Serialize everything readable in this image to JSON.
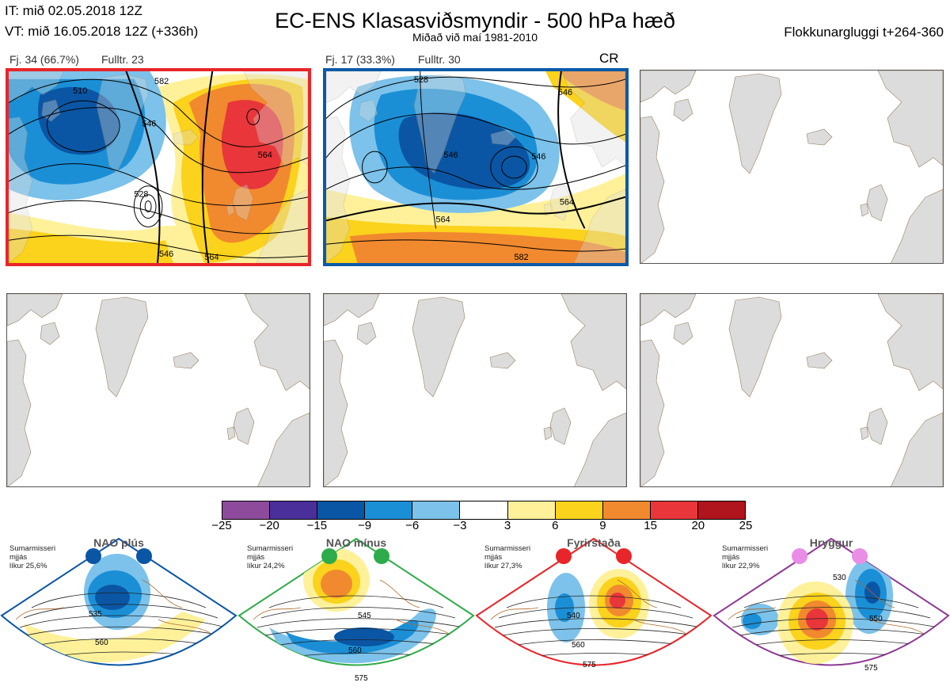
{
  "header": {
    "it_line": "IT: mið 02.05.2018 12Z",
    "vt_line": "VT: mið 16.05.2018 12Z  (+336h)",
    "title": "EC-ENS Klasasviðsmyndir - 500 hPa hæð",
    "subtitle": "Miðað við maí 1981-2010",
    "window": "Flokkunargluggi t+264-360"
  },
  "clusters": [
    {
      "count_label": "Fj. 34 (66.7%)",
      "rep_label": "Fulltr. 23",
      "frame_color": "#e8252a",
      "contour_labels": [
        "510",
        "528",
        "546",
        "546",
        "564",
        "564",
        "582"
      ]
    },
    {
      "count_label": "Fj. 17 (33.3%)",
      "rep_label": "Fulltr. 30",
      "frame_color": "#0a5aa8",
      "tag": "CR",
      "contour_labels": [
        "528",
        "546",
        "546",
        "546",
        "564",
        "564",
        "582"
      ]
    }
  ],
  "colorbar": {
    "ticks": [
      "−25",
      "−20",
      "−15",
      "−9",
      "−6",
      "−3",
      "3",
      "6",
      "9",
      "15",
      "20",
      "25"
    ],
    "colors": [
      "#8e4b9b",
      "#4a2f9a",
      "#0a56a4",
      "#1b8fd6",
      "#7cc2ea",
      "#ffffff",
      "#fff19a",
      "#fbd21c",
      "#f1892f",
      "#e8363a",
      "#b0141c"
    ]
  },
  "regimes": [
    {
      "name": "NAO plús",
      "note": "Sumarmisseri\nmjjás\nlíkur 25,6%",
      "color": "#0a56a4",
      "contours": [
        "535",
        "560"
      ]
    },
    {
      "name": "NAO mínus",
      "note": "Sumarmisseri\nmjjás\nlíkur 24,2%",
      "color": "#2eab4a",
      "contours": [
        "545",
        "560",
        "575"
      ]
    },
    {
      "name": "Fyrirstaða",
      "note": "Sumarmisseri\nmjjás\nlíkur 27,3%",
      "color": "#e8252a",
      "contours": [
        "540",
        "560",
        "575"
      ]
    },
    {
      "name": "Hryggur",
      "note": "Sumarmisseri\nmjjás\nlíkur 22,9%",
      "color": "#e98de6",
      "contours": [
        "530",
        "550",
        "575"
      ]
    }
  ]
}
